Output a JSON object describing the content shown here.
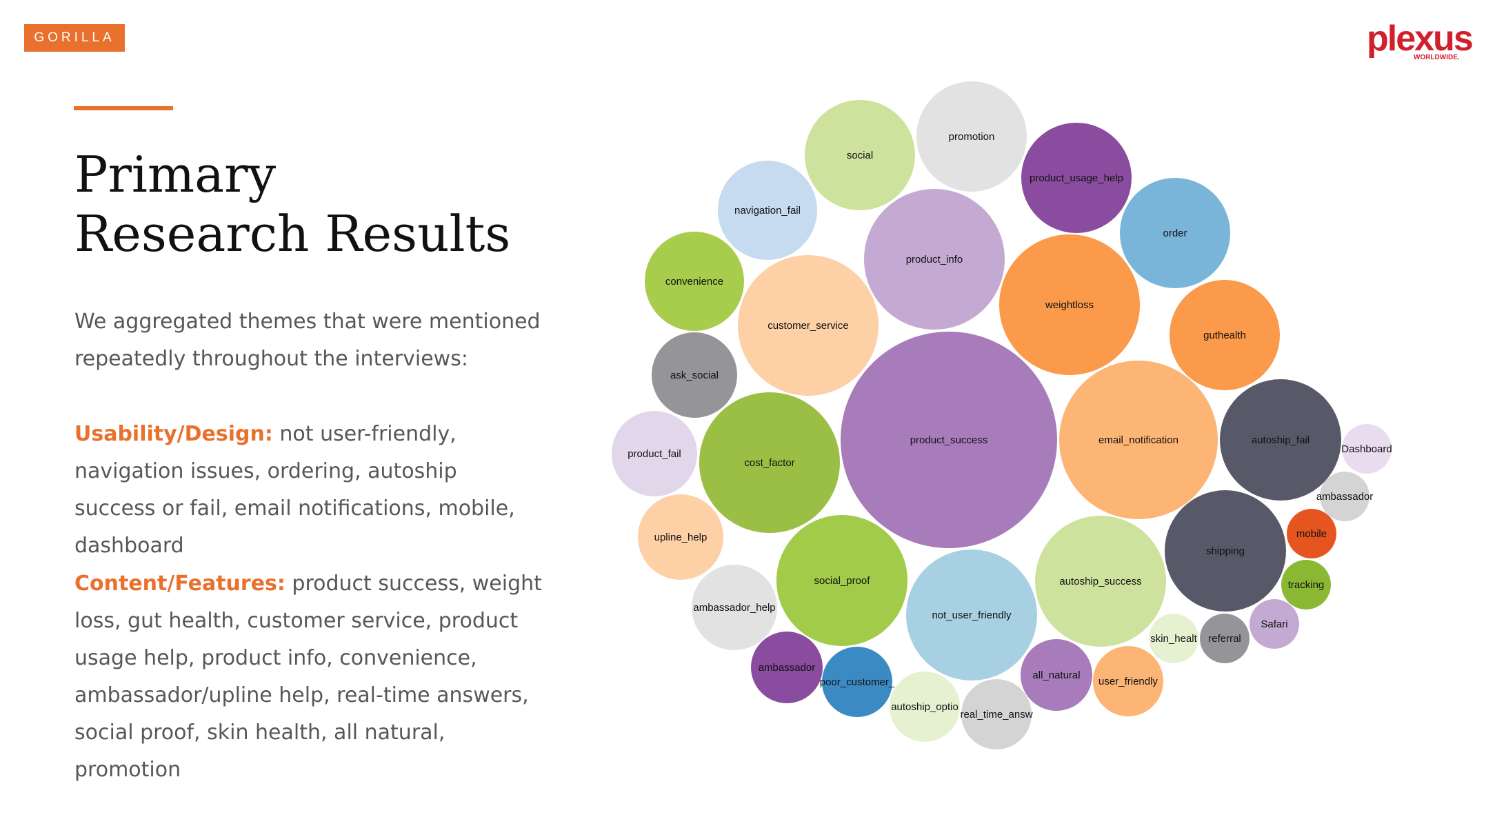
{
  "brand": {
    "name": "GORILLA"
  },
  "logo": {
    "word": "plexus",
    "subtitle": "WORLDWIDE."
  },
  "title": {
    "line1": "Primary",
    "line2": "Research Results"
  },
  "intro": "We aggregated themes that were mentioned repeatedly throughout the interviews:",
  "usability": {
    "label": "Usability/Design:",
    "text": " not user-friendly, navigation issues, ordering, autoship success or fail, email notifications, mobile, dashboard"
  },
  "content": {
    "label": "Content/Features:",
    "text": " product success, weight loss, gut health, customer service, product usage help, product info, convenience, ambassador/upline help, real-time answers, social proof, skin health, all natural, promotion"
  },
  "colors": {
    "accent": "#e8712d",
    "logo": "#d21f2c"
  },
  "chart_data": {
    "type": "bubble",
    "bubbles": [
      {
        "label": "product_success",
        "color": "#a87cbb"
      },
      {
        "label": "email_notification",
        "color": "#fcb575"
      },
      {
        "label": "weightloss",
        "color": "#fa9a4a"
      },
      {
        "label": "product_info",
        "color": "#c4a9d3"
      },
      {
        "label": "customer_service",
        "color": "#fdd0a5"
      },
      {
        "label": "cost_factor",
        "color": "#9bbe45"
      },
      {
        "label": "not_user_friendly",
        "color": "#a8d0e3"
      },
      {
        "label": "social_proof",
        "color": "#a2cb4a"
      },
      {
        "label": "autoship_success",
        "color": "#cde29d"
      },
      {
        "label": "autoship_fail",
        "color": "#575868"
      },
      {
        "label": "shipping",
        "color": "#575868"
      },
      {
        "label": "promotion",
        "color": "#e2e2e2"
      },
      {
        "label": "order",
        "color": "#78b5d8"
      },
      {
        "label": "guthealth",
        "color": "#fa9a4a"
      },
      {
        "label": "social",
        "color": "#cde29d"
      },
      {
        "label": "product_usage_help",
        "color": "#8a4c9e"
      },
      {
        "label": "navigation_fail",
        "color": "#c6dbef"
      },
      {
        "label": "convenience",
        "color": "#a8cc4c"
      },
      {
        "label": "ask_social",
        "color": "#959499"
      },
      {
        "label": "product_fail",
        "color": "#e2d6ea"
      },
      {
        "label": "upline_help",
        "color": "#fdd0a5"
      },
      {
        "label": "ambassador_help",
        "color": "#e2e2e2"
      },
      {
        "label": "all_natural",
        "color": "#a87cbb"
      },
      {
        "label": "ambassador",
        "color": "#8a4c9e"
      },
      {
        "label": "user_friendly",
        "color": "#fcb575"
      },
      {
        "label": "real_time_answ",
        "color": "#d4d4d4"
      },
      {
        "label": "poor_customer_",
        "color": "#3b8ac4"
      },
      {
        "label": "autoship_optio",
        "color": "#e5f1d0"
      },
      {
        "label": "referral",
        "color": "#959499"
      },
      {
        "label": "Safari",
        "color": "#c4a9d3"
      },
      {
        "label": "tracking",
        "color": "#8ab833"
      },
      {
        "label": "mobile",
        "color": "#e6551f"
      },
      {
        "label": "ambassador",
        "color": "#d4d4d4"
      },
      {
        "label": "Dashboard",
        "color": "#e8dcee"
      },
      {
        "label": "skin_healt",
        "color": "#e5f1d0"
      }
    ]
  }
}
